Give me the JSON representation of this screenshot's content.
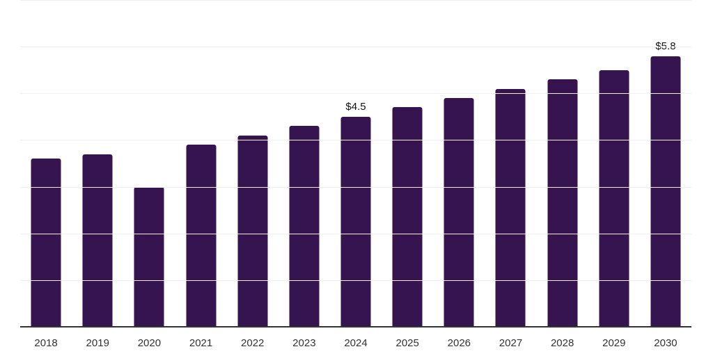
{
  "chart_data": {
    "type": "bar",
    "title": "",
    "xlabel": "",
    "ylabel": "",
    "categories": [
      "2018",
      "2019",
      "2020",
      "2021",
      "2022",
      "2023",
      "2024",
      "2025",
      "2026",
      "2027",
      "2028",
      "2029",
      "2030"
    ],
    "values": [
      3.6,
      3.7,
      3.0,
      3.9,
      4.1,
      4.3,
      4.5,
      4.7,
      4.9,
      5.1,
      5.3,
      5.5,
      5.8
    ],
    "annotations": [
      {
        "category": "2024",
        "label": "$4.5"
      },
      {
        "category": "2030",
        "label": "$5.8"
      }
    ],
    "ylim": [
      0,
      7
    ],
    "gridline_step": 1,
    "grid": true,
    "legend": false,
    "y_axis_labels_visible": false,
    "colors": {
      "bar": "#361450",
      "axis": "#333333",
      "gridline": "#f0f0f0",
      "tick_label": "#333333",
      "annotation": "#111111",
      "background": "#ffffff"
    }
  }
}
